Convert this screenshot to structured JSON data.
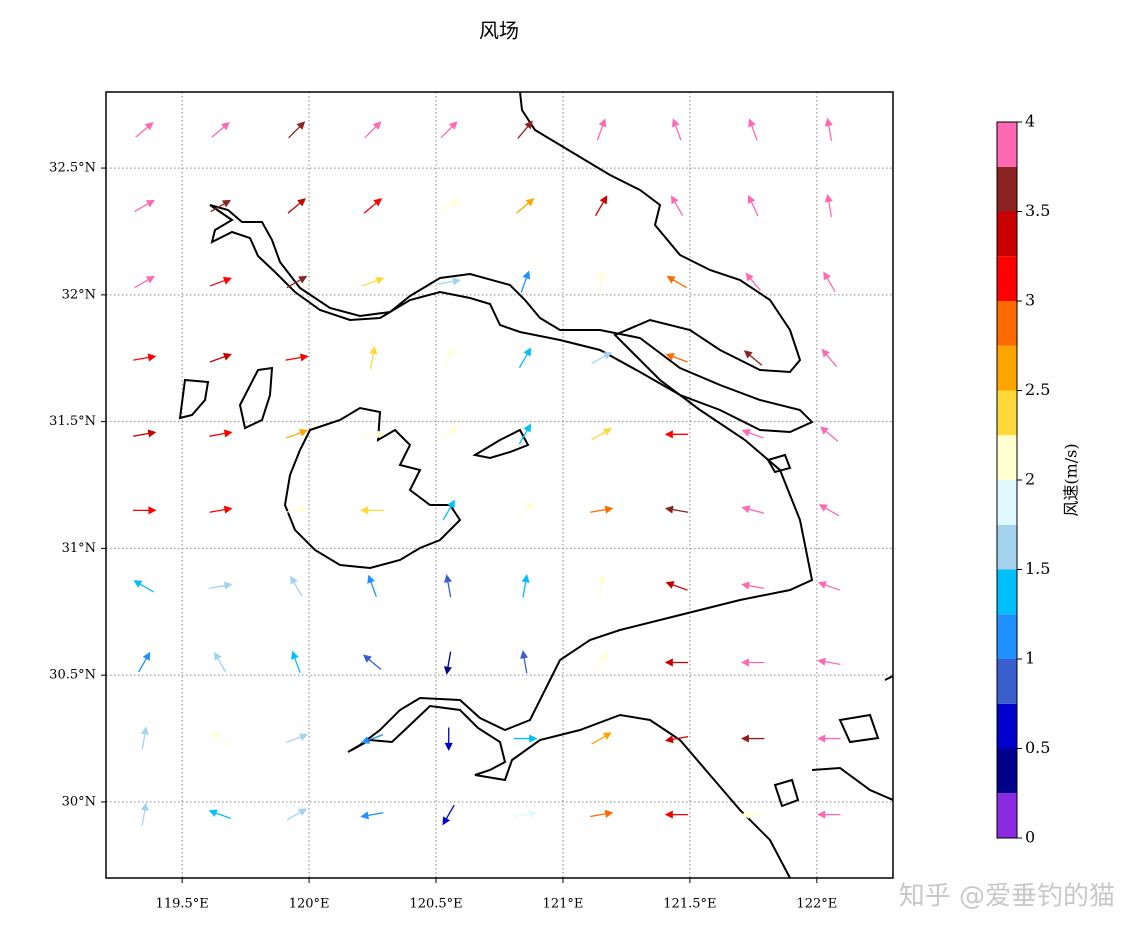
{
  "chart_data": {
    "type": "quiver",
    "title": "风场",
    "xlim": [
      119.2,
      122.3
    ],
    "ylim": [
      29.7,
      32.8
    ],
    "xticks": [
      {
        "value": 119.5,
        "label": "119.5°E"
      },
      {
        "value": 120,
        "label": "120°E"
      },
      {
        "value": 120.5,
        "label": "120.5°E"
      },
      {
        "value": 121,
        "label": "121°E"
      },
      {
        "value": 121.5,
        "label": "121.5°E"
      },
      {
        "value": 122,
        "label": "122°E"
      }
    ],
    "yticks": [
      {
        "value": 30,
        "label": "30°N"
      },
      {
        "value": 30.5,
        "label": "30.5°N"
      },
      {
        "value": 31,
        "label": "31°N"
      },
      {
        "value": 31.5,
        "label": "31.5°N"
      },
      {
        "value": 32,
        "label": "32°N"
      },
      {
        "value": 32.5,
        "label": "32.5°N"
      }
    ],
    "grid": true,
    "lons": [
      119.35,
      119.65,
      119.95,
      120.25,
      120.55,
      120.85,
      121.15,
      121.45,
      121.75,
      122.05
    ],
    "lats": [
      32.65,
      32.35,
      32.05,
      31.75,
      31.45,
      31.15,
      30.85,
      30.55,
      30.25,
      29.95
    ],
    "speed": [
      [
        3.9,
        3.9,
        3.6,
        3.9,
        3.9,
        3.6,
        3.9,
        3.9,
        3.9,
        3.9
      ],
      [
        3.9,
        3.6,
        3.4,
        3.2,
        2.2,
        2.6,
        3.3,
        3.9,
        3.9,
        3.9
      ],
      [
        3.9,
        3.2,
        3.6,
        2.3,
        1.6,
        1.1,
        2.1,
        2.9,
        3.9,
        3.9
      ],
      [
        3.2,
        3.4,
        3.1,
        2.4,
        2.1,
        1.3,
        1.6,
        2.8,
        3.6,
        3.9
      ],
      [
        3.3,
        3.1,
        2.6,
        2.2,
        2.1,
        1.4,
        2.3,
        3.2,
        3.9,
        3.9
      ],
      [
        3.2,
        3.1,
        2.2,
        2.3,
        1.4,
        2.0,
        2.9,
        3.6,
        3.9,
        3.9
      ],
      [
        1.4,
        1.7,
        1.5,
        1.1,
        0.8,
        1.3,
        2.1,
        3.3,
        3.9,
        3.9
      ],
      [
        1.2,
        1.6,
        1.4,
        0.9,
        0.3,
        0.9,
        2.2,
        3.4,
        3.9,
        3.9
      ],
      [
        1.7,
        2.1,
        1.5,
        1.2,
        0.7,
        1.4,
        2.6,
        3.3,
        3.7,
        3.9
      ],
      [
        1.6,
        1.3,
        1.6,
        1.1,
        0.6,
        1.8,
        2.8,
        3.2,
        2.2,
        3.9
      ]
    ],
    "direction": [
      [
        40,
        40,
        45,
        45,
        45,
        50,
        70,
        110,
        110,
        100
      ],
      [
        30,
        30,
        40,
        40,
        30,
        40,
        60,
        120,
        115,
        100
      ],
      [
        30,
        20,
        30,
        20,
        10,
        70,
        90,
        150,
        130,
        120
      ],
      [
        10,
        20,
        10,
        80,
        60,
        60,
        30,
        160,
        140,
        130
      ],
      [
        10,
        10,
        20,
        0,
        40,
        60,
        30,
        180,
        160,
        140
      ],
      [
        0,
        10,
        10,
        180,
        60,
        40,
        10,
        170,
        165,
        150
      ],
      [
        150,
        10,
        120,
        110,
        100,
        80,
        80,
        160,
        170,
        160
      ],
      [
        60,
        120,
        110,
        140,
        260,
        100,
        60,
        180,
        180,
        170
      ],
      [
        80,
        150,
        20,
        200,
        270,
        0,
        30,
        190,
        180,
        180
      ],
      [
        80,
        160,
        30,
        190,
        240,
        10,
        10,
        180,
        180,
        180
      ]
    ],
    "colorbar": {
      "label": "风速(m/s)",
      "levels": [
        0,
        0.25,
        0.5,
        0.75,
        1,
        1.25,
        1.5,
        1.75,
        2,
        2.25,
        2.5,
        2.75,
        3,
        3.25,
        3.5,
        3.75,
        4
      ],
      "colors": [
        "#8a2be2",
        "#00008b",
        "#0000cd",
        "#3a5fcd",
        "#1e90ff",
        "#00bfff",
        "#a4d3ee",
        "#e0f8ff",
        "#ffffd0",
        "#ffd93a",
        "#ffa500",
        "#ff6a00",
        "#ff0000",
        "#c80000",
        "#8b2323",
        "#ff69b4"
      ],
      "ticks": [
        0,
        0.5,
        1,
        1.5,
        2,
        2.5,
        3,
        3.5,
        4
      ]
    },
    "watermark": "知乎 @爱垂钓的猫"
  }
}
